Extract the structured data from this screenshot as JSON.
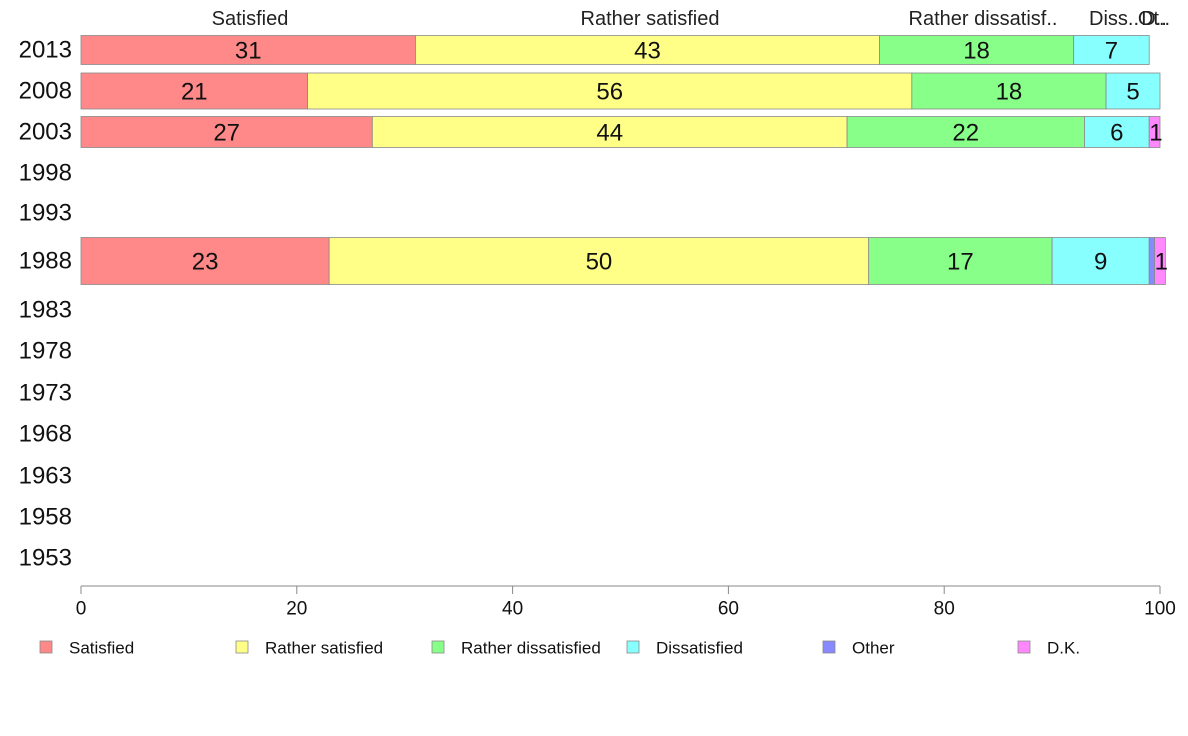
{
  "chart_data": {
    "type": "bar",
    "orientation": "horizontal",
    "stacked": true,
    "title": "",
    "xlabel": "",
    "ylabel": "",
    "xlim": [
      0,
      100
    ],
    "x_ticks": [
      "0",
      "20",
      "40",
      "60",
      "80",
      "100"
    ],
    "categories": [
      "2013",
      "2008",
      "2003",
      "1998",
      "1993",
      "1988",
      "1983",
      "1978",
      "1973",
      "1968",
      "1963",
      "1958",
      "1953"
    ],
    "top_labels": [
      "Satisfied",
      "Rather satisfied",
      "Rather dissatisf..",
      "Diss..",
      "D..",
      "Ot.."
    ],
    "series": [
      {
        "name": "Satisfied",
        "color": "#ff8888",
        "values": [
          31,
          21,
          27,
          null,
          null,
          23,
          null,
          null,
          null,
          null,
          null,
          null,
          null
        ]
      },
      {
        "name": "Rather satisfied",
        "color": "#ffff88",
        "values": [
          43,
          56,
          44,
          null,
          null,
          50,
          null,
          null,
          null,
          null,
          null,
          null,
          null
        ]
      },
      {
        "name": "Rather dissatisfied",
        "color": "#88ff88",
        "values": [
          18,
          18,
          22,
          null,
          null,
          17,
          null,
          null,
          null,
          null,
          null,
          null,
          null
        ]
      },
      {
        "name": "Dissatisfied",
        "color": "#88ffff",
        "values": [
          7,
          5,
          6,
          null,
          null,
          9,
          null,
          null,
          null,
          null,
          null,
          null,
          null
        ]
      },
      {
        "name": "Other",
        "color": "#8888ff",
        "values": [
          0,
          0,
          0,
          null,
          null,
          0.5,
          null,
          null,
          null,
          null,
          null,
          null,
          null
        ]
      },
      {
        "name": "D.K.",
        "color": "#ff88ff",
        "values": [
          0,
          0,
          1,
          null,
          null,
          1,
          null,
          null,
          null,
          null,
          null,
          null,
          null
        ]
      }
    ],
    "legend_position": "bottom",
    "grid": false
  }
}
